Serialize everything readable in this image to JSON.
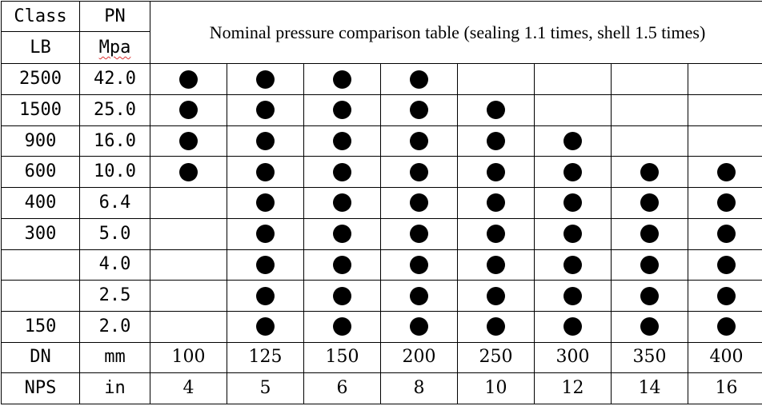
{
  "header": {
    "class_label": "Class",
    "pn_label": "PN",
    "lb_label": "LB",
    "mpa_label": "Mpa",
    "title": "Nominal pressure comparison table (sealing 1.1 times, shell 1.5 times)"
  },
  "rows": [
    {
      "lb": "2500",
      "pn": "42.0",
      "marks": [
        true,
        true,
        true,
        true,
        false,
        false,
        false,
        false
      ]
    },
    {
      "lb": "1500",
      "pn": "25.0",
      "marks": [
        true,
        true,
        true,
        true,
        true,
        false,
        false,
        false
      ]
    },
    {
      "lb": "900",
      "pn": "16.0",
      "marks": [
        true,
        true,
        true,
        true,
        true,
        true,
        false,
        false
      ]
    },
    {
      "lb": "600",
      "pn": "10.0",
      "marks": [
        true,
        true,
        true,
        true,
        true,
        true,
        true,
        true
      ]
    },
    {
      "lb": "400",
      "pn": "6.4",
      "marks": [
        false,
        true,
        true,
        true,
        true,
        true,
        true,
        true
      ]
    },
    {
      "lb": "300",
      "pn": "5.0",
      "marks": [
        false,
        true,
        true,
        true,
        true,
        true,
        true,
        true
      ]
    },
    {
      "lb": "",
      "pn": "4.0",
      "marks": [
        false,
        true,
        true,
        true,
        true,
        true,
        true,
        true
      ]
    },
    {
      "lb": "",
      "pn": "2.5",
      "marks": [
        false,
        true,
        true,
        true,
        true,
        true,
        true,
        true
      ]
    },
    {
      "lb": "150",
      "pn": "2.0",
      "marks": [
        false,
        true,
        true,
        true,
        true,
        true,
        true,
        true
      ]
    }
  ],
  "dn_row": {
    "label": "DN",
    "unit": "mm",
    "values": [
      "100",
      "125",
      "150",
      "200",
      "250",
      "300",
      "350",
      "400"
    ]
  },
  "nps_row": {
    "label": "NPS",
    "unit": "in",
    "values": [
      "4",
      "5",
      "6",
      "8",
      "10",
      "12",
      "14",
      "16"
    ]
  },
  "marker_icon": "filled-circle-icon"
}
